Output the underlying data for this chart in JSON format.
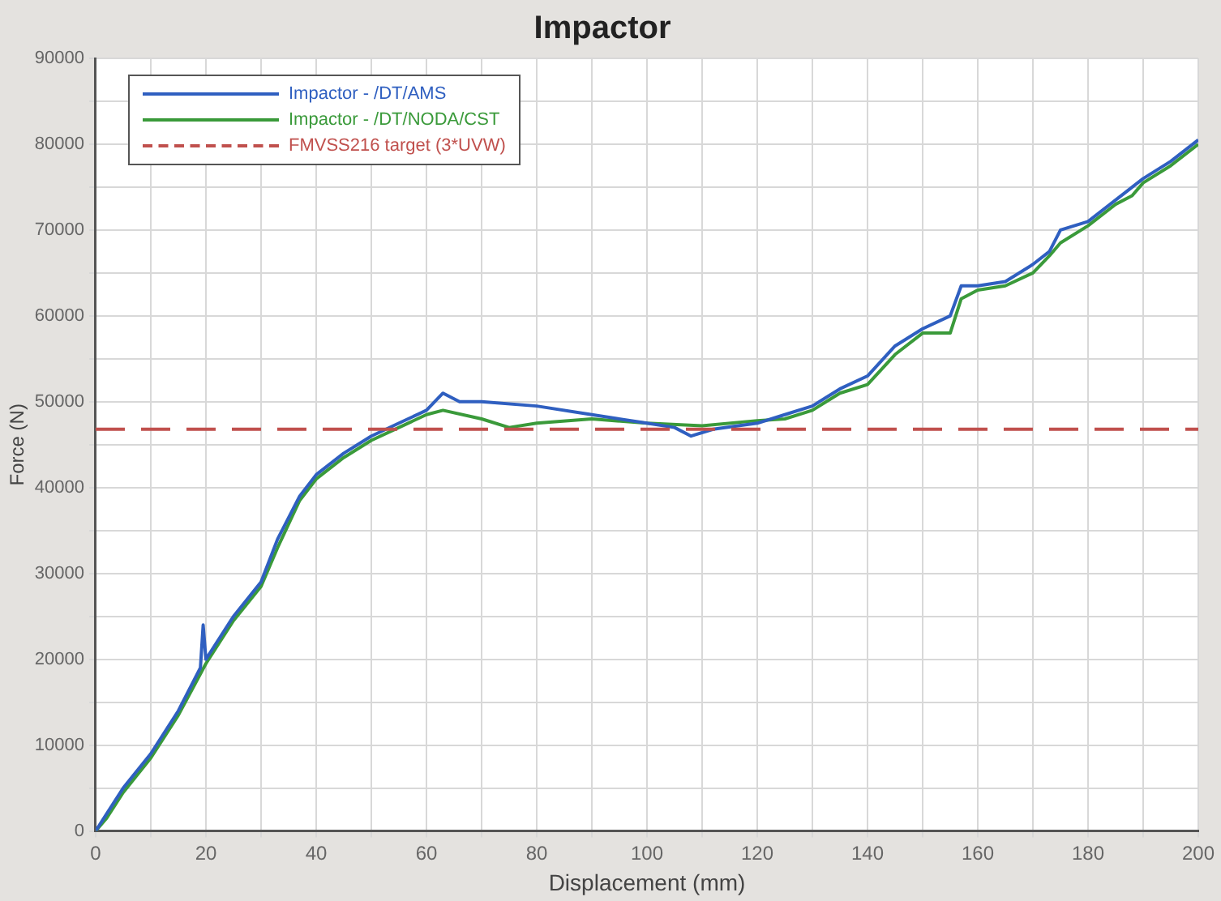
{
  "chart_data": {
    "type": "line",
    "title": "Impactor",
    "xlabel": "Displacement (mm)",
    "ylabel": "Force (N)",
    "xlim": [
      0,
      200
    ],
    "ylim": [
      0,
      90000
    ],
    "xticks": [
      0,
      {
        "value": 10,
        "label": null
      },
      20,
      {
        "value": 30,
        "label": null
      },
      40,
      {
        "value": 50,
        "label": null
      },
      60,
      {
        "value": 70,
        "label": null
      },
      80,
      {
        "value": 90,
        "label": null
      },
      100,
      {
        "value": 110,
        "label": null
      },
      120,
      {
        "value": 130,
        "label": null
      },
      140,
      {
        "value": 150,
        "label": null
      },
      160,
      {
        "value": 170,
        "label": null
      },
      180,
      {
        "value": 190,
        "label": null
      },
      200
    ],
    "yticks": [
      0,
      {
        "value": 5000,
        "label": null
      },
      10000,
      {
        "value": 15000,
        "label": null
      },
      20000,
      {
        "value": 25000,
        "label": null
      },
      30000,
      {
        "value": 35000,
        "label": null
      },
      40000,
      {
        "value": 45000,
        "label": null
      },
      50000,
      {
        "value": 55000,
        "label": null
      },
      60000,
      {
        "value": 65000,
        "label": null
      },
      70000,
      {
        "value": 75000,
        "label": null
      },
      80000,
      {
        "value": 85000,
        "label": null
      },
      90000
    ],
    "grid": true,
    "legend": "top left",
    "marker": "none",
    "line_style": "solid",
    "series": [
      {
        "name": "Impactor - /DT/AMS",
        "color": "#2f5fc0",
        "x": [
          0,
          2,
          5,
          10,
          15,
          19,
          19.5,
          20,
          25,
          30,
          33,
          37,
          40,
          45,
          50,
          55,
          60,
          63,
          66,
          70,
          80,
          90,
          100,
          105,
          108,
          112,
          120,
          125,
          130,
          135,
          140,
          145,
          150,
          155,
          157,
          160,
          165,
          170,
          173,
          175,
          180,
          185,
          190,
          195,
          200
        ],
        "values": [
          0,
          2000,
          5000,
          9000,
          14000,
          19000,
          24000,
          20000,
          25000,
          29000,
          34000,
          39000,
          41500,
          44000,
          46000,
          47500,
          49000,
          51000,
          50000,
          50000,
          49500,
          48500,
          47500,
          47000,
          46000,
          46800,
          47500,
          48500,
          49500,
          51500,
          53000,
          56500,
          58500,
          60000,
          63500,
          63500,
          64000,
          66000,
          67500,
          70000,
          71000,
          73500,
          76000,
          78000,
          80500
        ]
      },
      {
        "name": "Impactor - /DT/NODA/CST",
        "color": "#3a9a3a",
        "x": [
          0,
          2,
          5,
          10,
          15,
          20,
          25,
          30,
          33,
          37,
          40,
          45,
          50,
          55,
          60,
          63,
          70,
          75,
          80,
          90,
          100,
          110,
          120,
          125,
          130,
          135,
          140,
          145,
          150,
          155,
          157,
          160,
          165,
          170,
          173,
          175,
          180,
          185,
          188,
          190,
          195,
          200
        ],
        "values": [
          0,
          1500,
          4500,
          8500,
          13500,
          19500,
          24500,
          28500,
          33000,
          38500,
          41000,
          43500,
          45500,
          47000,
          48500,
          49000,
          48000,
          47000,
          47500,
          48000,
          47500,
          47200,
          47800,
          48000,
          49000,
          51000,
          52000,
          55500,
          58000,
          58000,
          62000,
          63000,
          63500,
          65000,
          67000,
          68500,
          70500,
          73000,
          74000,
          75500,
          77500,
          80000
        ]
      }
    ],
    "ref_lines": [
      {
        "axis": "y",
        "value": 46800,
        "label": "FMVSS216 target (3*UVW)",
        "color": "#c0504d",
        "line_style": "dashed"
      }
    ]
  }
}
